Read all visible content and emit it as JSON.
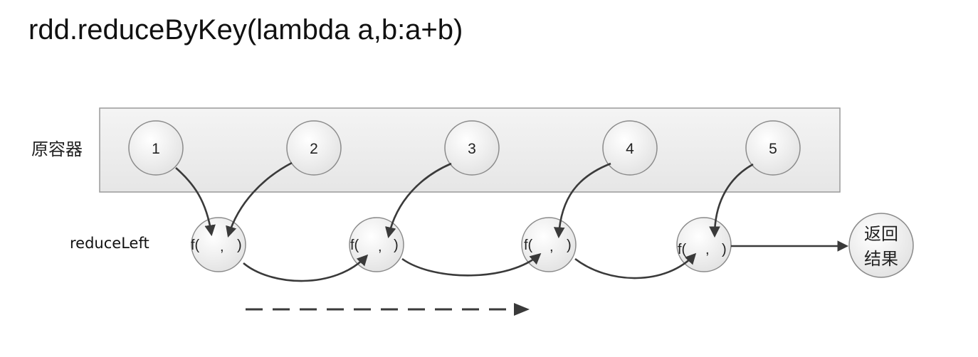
{
  "title": "rdd.reduceByKey(lambda a,b:a+b)",
  "container_label": "原容器",
  "reduce_label": "reduceLeft",
  "elements": [
    "1",
    "2",
    "3",
    "4",
    "5"
  ],
  "func_nodes": [
    {
      "prefix": "f(",
      "sep": ",",
      "suffix": ")"
    },
    {
      "prefix": "f(",
      "sep": ",",
      "suffix": ")"
    },
    {
      "prefix": "f(",
      "sep": ",",
      "suffix": ")"
    },
    {
      "prefix": "f(",
      "sep": ",",
      "suffix": ")"
    }
  ],
  "result": {
    "line1": "返回",
    "line2": "结果"
  },
  "colors": {
    "container_fill": "#ededed",
    "circle_fill": "#e8e8e8",
    "stroke": "#8a8a8a",
    "arrow": "#3a3a3a"
  }
}
